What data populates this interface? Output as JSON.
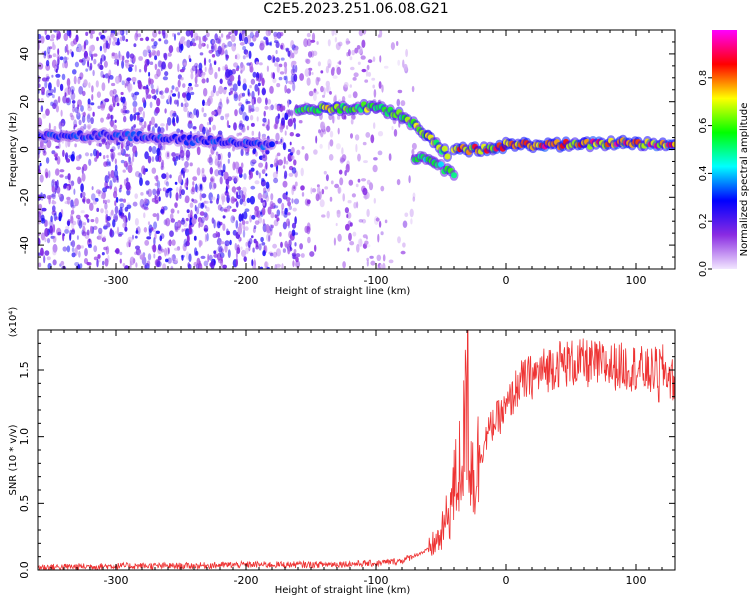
{
  "title": "C2E5.2023.251.06.08.G21",
  "chart_data": [
    {
      "type": "heatmap",
      "xlabel": "Height of straight line (km)",
      "ylabel": "Frequency (Hz)",
      "xlim": [
        -360,
        130
      ],
      "ylim": [
        -50,
        50
      ],
      "xticks": [
        -300,
        -200,
        -100,
        0,
        100
      ],
      "yticks": [
        -40,
        -20,
        0,
        20,
        40
      ],
      "colorbar": {
        "label": "Normalized spectral amplitude",
        "range": [
          0,
          1
        ],
        "ticks": [
          "0.0",
          "0.2",
          "0.4",
          "0.6",
          "0.8"
        ],
        "colors": [
          "#ffffff",
          "#8a2be2",
          "#0000ff",
          "#00ffff",
          "#00ff00",
          "#ffff00",
          "#ff0000",
          "#ff00ff"
        ]
      },
      "ridges": [
        {
          "points": [
            [
              -360,
              6
            ],
            [
              -300,
              6
            ],
            [
              -250,
              4
            ],
            [
              -200,
              3
            ],
            [
              -180,
              1
            ]
          ],
          "amplitude": 0.35
        },
        {
          "points": [
            [
              -160,
              17
            ],
            [
              -130,
              17
            ],
            [
              -100,
              18
            ],
            [
              -80,
              14
            ],
            [
              -60,
              6
            ],
            [
              -45,
              -2
            ]
          ],
          "amplitude": 0.75
        },
        {
          "points": [
            [
              -70,
              -3
            ],
            [
              -55,
              -6
            ],
            [
              -40,
              -10
            ]
          ],
          "amplitude": 0.6
        },
        {
          "points": [
            [
              -40,
              0
            ],
            [
              -10,
              0
            ],
            [
              0,
              2
            ],
            [
              60,
              2
            ],
            [
              90,
              3
            ],
            [
              130,
              2
            ]
          ],
          "amplitude": 0.95
        }
      ]
    },
    {
      "type": "line",
      "xlabel": "Height of straight line (km)",
      "ylabel": "SNR (10 * v/v)",
      "ymultiplier": "(x10⁴)",
      "xlim": [
        -360,
        130
      ],
      "ylim": [
        0,
        18000
      ],
      "xticks": [
        -300,
        -200,
        -100,
        0,
        100
      ],
      "yticks": [
        "0.0",
        "0.5",
        "1.0",
        "1.5"
      ],
      "color": "#ee3333",
      "series": [
        {
          "x": [
            -360,
            -300,
            -250,
            -200,
            -150,
            -100,
            -80,
            -60,
            -50,
            -45,
            -40,
            -35,
            -32,
            -30,
            -28,
            -25,
            -20,
            -15,
            -10,
            -5,
            0,
            5,
            10,
            20,
            30,
            40,
            60,
            80,
            100,
            110,
            120,
            130
          ],
          "values": [
            200,
            300,
            300,
            400,
            400,
            500,
            700,
            1500,
            2500,
            4000,
            6000,
            8000,
            10000,
            13000,
            9000,
            7000,
            8500,
            10000,
            11000,
            11500,
            12000,
            13000,
            14000,
            14500,
            15000,
            15500,
            15500,
            15300,
            15200,
            14800,
            15200,
            14000
          ]
        }
      ]
    }
  ]
}
